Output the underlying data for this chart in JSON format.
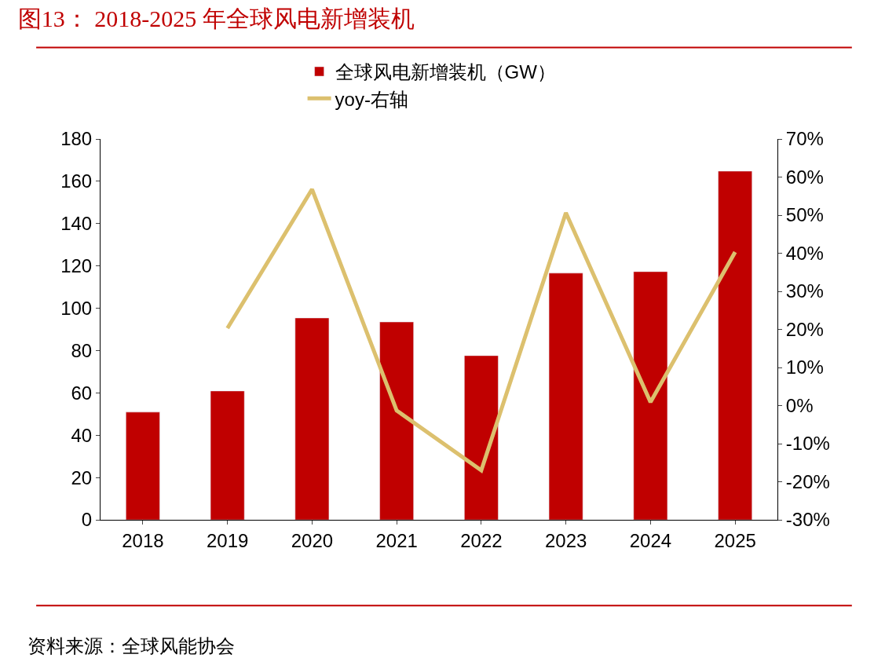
{
  "chart_data": {
    "type": "bar",
    "title": "图13： 2018-2025 年全球风电新增装机",
    "categories": [
      "2018",
      "2019",
      "2020",
      "2021",
      "2022",
      "2023",
      "2024",
      "2025"
    ],
    "series": [
      {
        "name": "全球风电新增装机（GW）",
        "color": "#c00000",
        "values": [
          50.9,
          60.9,
          95.4,
          93.5,
          77.6,
          116.6,
          117.3,
          164.8
        ]
      },
      {
        "name": "yoy-右轴",
        "type": "line",
        "axis": "y2",
        "color": "#dcc06e",
        "values": [
          null,
          20.3,
          56.8,
          -1.3,
          -17,
          50.6,
          0.9,
          40.3
        ]
      }
    ],
    "ylim": [
      0,
      180
    ],
    "yticks": [
      0,
      20,
      40,
      60,
      80,
      100,
      120,
      140,
      160,
      180
    ],
    "y2lim": [
      -30,
      70
    ],
    "y2ticks": [
      {
        "value": -30,
        "label": "-30%"
      },
      {
        "value": -20,
        "label": "-20%"
      },
      {
        "value": -10,
        "label": "-10%"
      },
      {
        "value": 0,
        "label": "0%"
      },
      {
        "value": 10,
        "label": "10%"
      },
      {
        "value": 20,
        "label": "20%"
      },
      {
        "value": 30,
        "label": "30%"
      },
      {
        "value": 40,
        "label": "40%"
      },
      {
        "value": 50,
        "label": "50%"
      },
      {
        "value": 60,
        "label": "60%"
      },
      {
        "value": 70,
        "label": "70%"
      }
    ],
    "legend": "top",
    "marker": "none",
    "line_style": "solid",
    "annotations": [
      "资料来源：全球风能协会"
    ]
  }
}
